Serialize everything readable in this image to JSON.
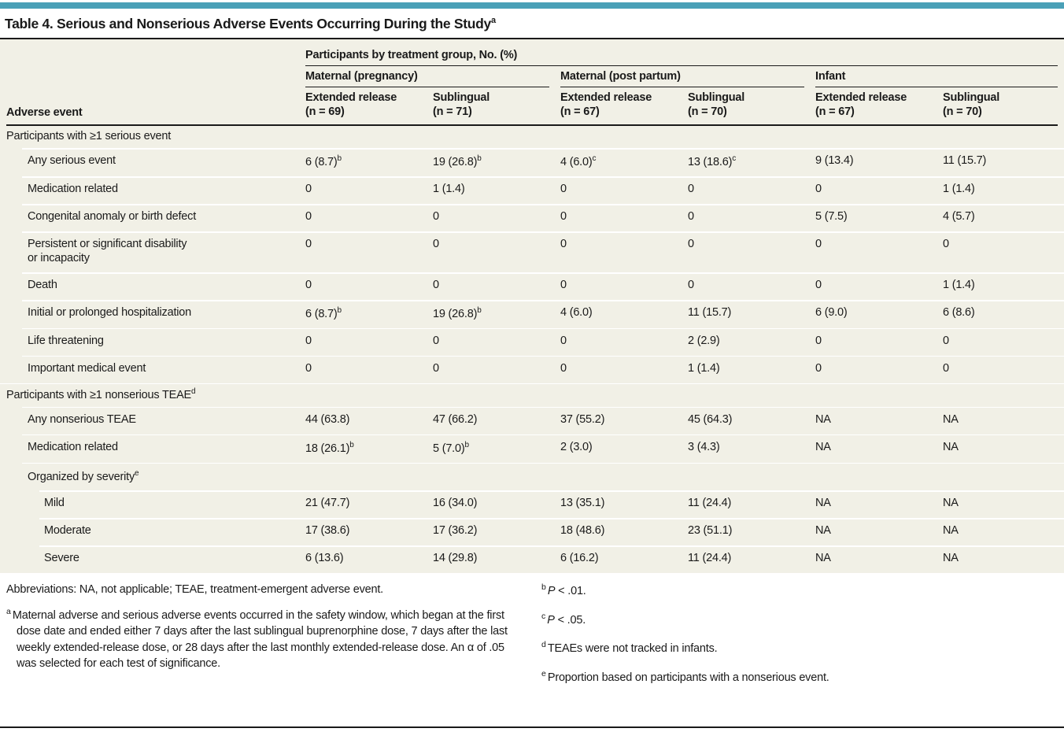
{
  "colors": {
    "accent": "#4AA0B7",
    "table_background": "#F1F0E6",
    "rule": "#1A1A1A",
    "row_separator": "#FFFFFF"
  },
  "title": {
    "text": "Table 4. Serious and Nonserious Adverse Events Occurring During the Study",
    "sup": "a"
  },
  "table": {
    "row_header": "Adverse event",
    "span_header": "Participants by treatment group, No. (%)",
    "groups": [
      {
        "label": "Maternal (pregnancy)",
        "columns": [
          {
            "title": "Extended release",
            "n": "(n = 69)"
          },
          {
            "title": "Sublingual",
            "n": "(n = 71)"
          }
        ]
      },
      {
        "label": "Maternal (post partum)",
        "columns": [
          {
            "title": "Extended release",
            "n": "(n = 67)"
          },
          {
            "title": "Sublingual",
            "n": "(n = 70)"
          }
        ]
      },
      {
        "label": "Infant",
        "columns": [
          {
            "title": "Extended release",
            "n": "(n = 67)"
          },
          {
            "title": "Sublingual",
            "n": "(n = 70)"
          }
        ]
      }
    ],
    "rows": [
      {
        "type": "section",
        "label": "Participants with ≥1 serious event",
        "cells": []
      },
      {
        "type": "data",
        "indent": 1,
        "label": "Any serious event",
        "cells": [
          {
            "v": "6 (8.7)",
            "s": "b"
          },
          {
            "v": "19 (26.8)",
            "s": "b"
          },
          {
            "v": "4 (6.0)",
            "s": "c"
          },
          {
            "v": "13 (18.6)",
            "s": "c"
          },
          "9 (13.4)",
          "11 (15.7)"
        ]
      },
      {
        "type": "data",
        "indent": 1,
        "label": "Medication related",
        "cells": [
          "0",
          "1 (1.4)",
          "0",
          "0",
          "0",
          "1 (1.4)"
        ]
      },
      {
        "type": "data",
        "indent": 1,
        "label": "Congenital anomaly or birth defect",
        "cells": [
          "0",
          "0",
          "0",
          "0",
          "5 (7.5)",
          "4 (5.7)"
        ]
      },
      {
        "type": "data",
        "indent": 1,
        "label": "Persistent or significant disability\nor incapacity",
        "cells": [
          "0",
          "0",
          "0",
          "0",
          "0",
          "0"
        ]
      },
      {
        "type": "data",
        "indent": 1,
        "label": "Death",
        "cells": [
          "0",
          "0",
          "0",
          "0",
          "0",
          "1 (1.4)"
        ]
      },
      {
        "type": "data",
        "indent": 1,
        "label": "Initial or prolonged hospitalization",
        "cells": [
          {
            "v": "6 (8.7)",
            "s": "b"
          },
          {
            "v": "19 (26.8)",
            "s": "b"
          },
          "4 (6.0)",
          "11 (15.7)",
          "6 (9.0)",
          "6 (8.6)"
        ]
      },
      {
        "type": "data",
        "indent": 1,
        "label": "Life threatening",
        "cells": [
          "0",
          "0",
          "0",
          "2 (2.9)",
          "0",
          "0"
        ]
      },
      {
        "type": "data",
        "indent": 1,
        "label": "Important medical event",
        "cells": [
          "0",
          "0",
          "0",
          "1 (1.4)",
          "0",
          "0"
        ]
      },
      {
        "type": "section",
        "label": "Participants with ≥1 nonserious TEAE",
        "label_sup": "d",
        "cells": []
      },
      {
        "type": "data",
        "indent": 1,
        "label": "Any nonserious TEAE",
        "cells": [
          "44 (63.8)",
          "47 (66.2)",
          "37 (55.2)",
          "45 (64.3)",
          "NA",
          "NA"
        ]
      },
      {
        "type": "data",
        "indent": 1,
        "label": "Medication related",
        "cells": [
          {
            "v": "18 (26.1)",
            "s": "b"
          },
          {
            "v": "5 (7.0)",
            "s": "b"
          },
          "2 (3.0)",
          "3 (4.3)",
          "NA",
          "NA"
        ]
      },
      {
        "type": "data",
        "indent": 1,
        "label": "Organized by severity",
        "label_sup": "e",
        "cells": [
          "",
          "",
          "",
          "",
          "",
          ""
        ]
      },
      {
        "type": "data",
        "indent": 2,
        "label": "Mild",
        "cells": [
          "21 (47.7)",
          "16 (34.0)",
          "13 (35.1)",
          "11 (24.4)",
          "NA",
          "NA"
        ]
      },
      {
        "type": "data",
        "indent": 2,
        "label": "Moderate",
        "cells": [
          "17 (38.6)",
          "17 (36.2)",
          "18 (48.6)",
          "23 (51.1)",
          "NA",
          "NA"
        ]
      },
      {
        "type": "data",
        "indent": 2,
        "label": "Severe",
        "cells": [
          "6 (13.6)",
          "14 (29.8)",
          "6 (16.2)",
          "11 (24.4)",
          "NA",
          "NA"
        ]
      }
    ]
  },
  "footnotes": {
    "left": [
      {
        "text": "Abbreviations: NA, not applicable; TEAE, treatment-emergent adverse event."
      },
      {
        "sup": "a",
        "text": "Maternal adverse and serious adverse events occurred in the safety window, which began at the first dose date and ended either 7 days after the last sublingual buprenorphine dose, 7 days after the last weekly extended-release dose, or 28 days after the last monthly extended-release dose. An α of .05 was selected for each test of significance."
      }
    ],
    "right": [
      {
        "sup": "b",
        "lead_italic": "P",
        "text": " < .01."
      },
      {
        "sup": "c",
        "lead_italic": "P",
        "text": " < .05."
      },
      {
        "sup": "d",
        "text": "TEAEs were not tracked in infants."
      },
      {
        "sup": "e",
        "text": "Proportion based on participants with a nonserious event."
      }
    ]
  }
}
